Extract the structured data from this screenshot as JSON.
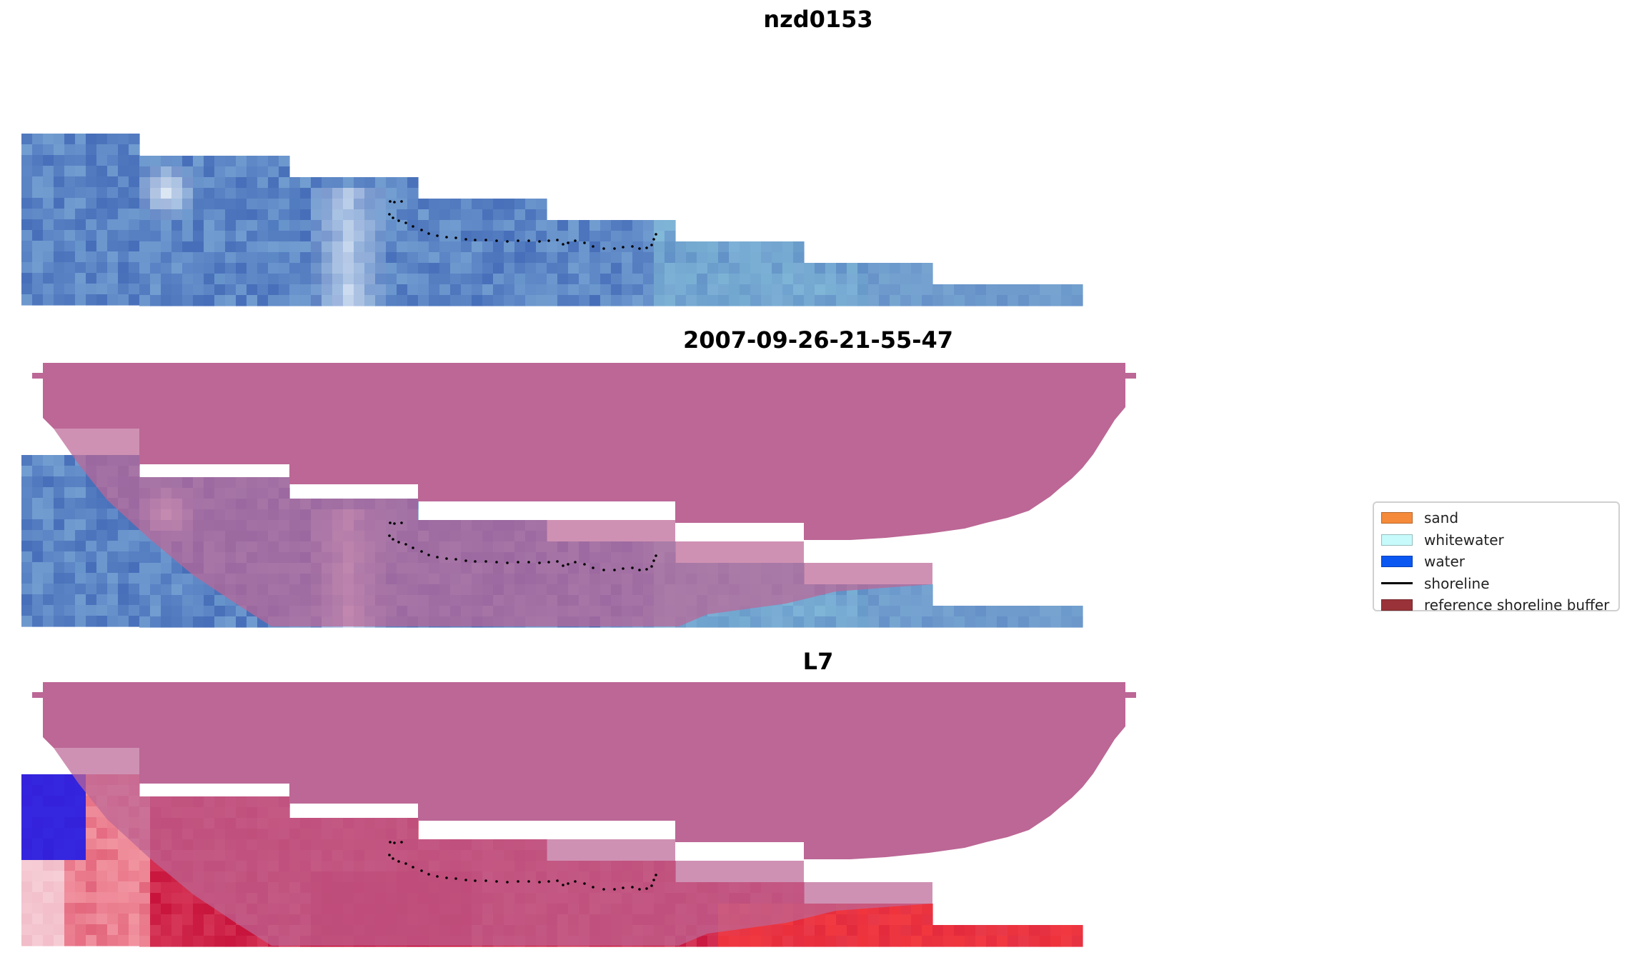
{
  "panels": [
    {
      "title": "nzd0153",
      "layers": [
        "rgb"
      ]
    },
    {
      "title": "2007-09-26-21-55-47",
      "layers": [
        "rgb",
        "reference-buffer"
      ]
    },
    {
      "title": "L7",
      "layers": [
        "index",
        "reference-buffer"
      ]
    }
  ],
  "legend": {
    "items": [
      {
        "label": "sand",
        "kind": "swatch",
        "color": "#f58a3a"
      },
      {
        "label": "whitewater",
        "kind": "swatch",
        "color": "#c7fbfb"
      },
      {
        "label": "water",
        "kind": "swatch",
        "color": "#0a57f2"
      },
      {
        "label": "shoreline",
        "kind": "line",
        "color": "#000000"
      },
      {
        "label": "reference shoreline buffer",
        "kind": "swatch",
        "color": "#9a3339"
      }
    ]
  },
  "colors": {
    "background": "#ffffff",
    "buffer_overlay": "#bc6796",
    "shoreline": "#000000"
  }
}
